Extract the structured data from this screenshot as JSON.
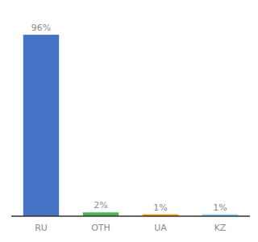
{
  "chart_data": {
    "type": "bar",
    "categories": [
      "RU",
      "OTH",
      "UA",
      "KZ"
    ],
    "values": [
      96,
      2,
      1,
      1
    ],
    "value_labels": [
      "96%",
      "2%",
      "1%",
      "1%"
    ],
    "colors": [
      "#4472c4",
      "#4caf50",
      "#ff9800",
      "#81d4fa"
    ],
    "ylim": [
      0,
      105
    ],
    "data_labels": true,
    "tick_labels": "x",
    "grid": false
  }
}
